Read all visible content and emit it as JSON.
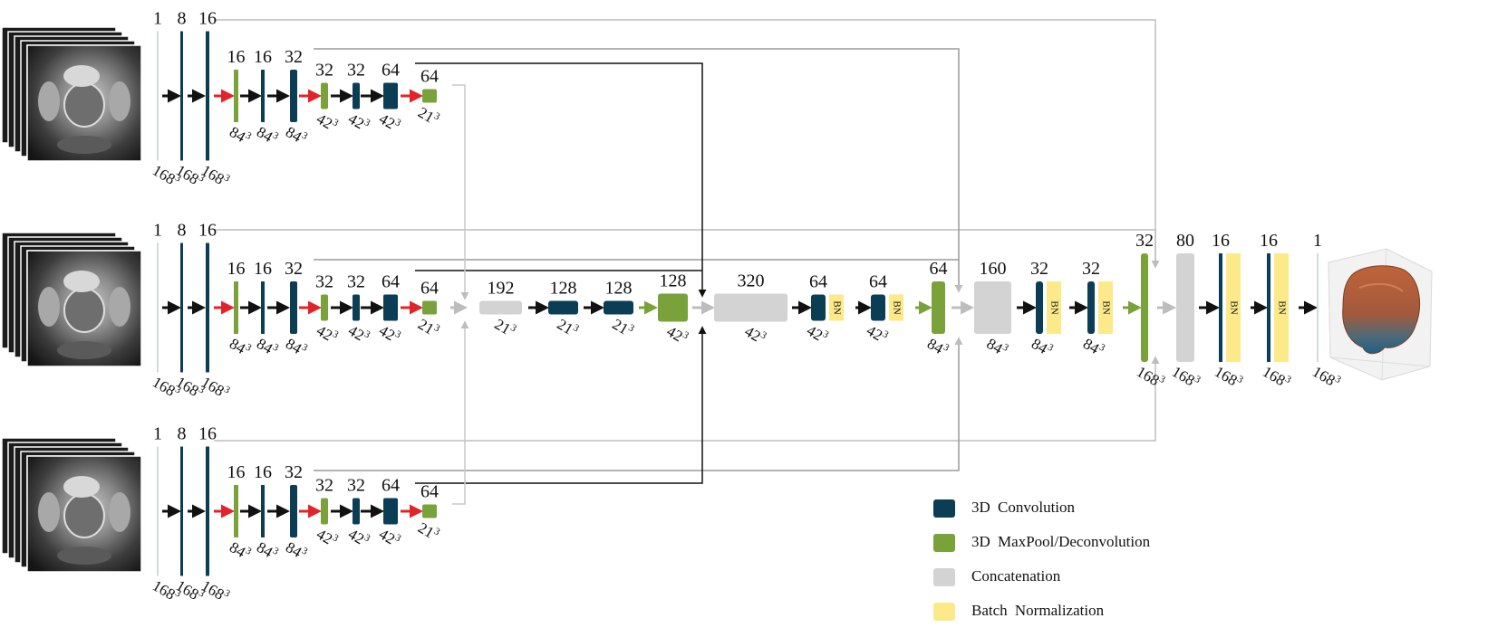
{
  "colors": {
    "convolution": "#0b3d55",
    "pool": "#7aa23b",
    "concat": "#d3d3d3",
    "batchnorm": "#fbe98a",
    "arrow_main": "#111111",
    "arrow_down": "#e2232a",
    "arrow_up": "#7aa23b",
    "skip_dark": "#111111",
    "skip_light": "#bdbdbd"
  },
  "icons": {
    "input_image": "mri-slice-stack-icon",
    "output_image": "3d-prostate-render-icon"
  },
  "encoders": [
    {
      "channels": [
        "1",
        "8",
        "16",
        "16",
        "16",
        "32",
        "32",
        "32",
        "64",
        "64"
      ],
      "sizes": [
        "168",
        "168",
        "168",
        "84",
        "84",
        "84",
        "42",
        "42",
        "42",
        "21"
      ]
    },
    {
      "channels": [
        "1",
        "8",
        "16",
        "16",
        "16",
        "32",
        "32",
        "32",
        "64",
        "64"
      ],
      "sizes": [
        "168",
        "168",
        "168",
        "84",
        "84",
        "84",
        "42",
        "42",
        "42",
        "21"
      ]
    },
    {
      "channels": [
        "1",
        "8",
        "16",
        "16",
        "16",
        "32",
        "32",
        "32",
        "64",
        "64"
      ],
      "sizes": [
        "168",
        "168",
        "168",
        "84",
        "84",
        "84",
        "42",
        "42",
        "42",
        "21"
      ]
    }
  ],
  "decoder": {
    "channels": [
      "192",
      "128",
      "128",
      "128",
      "320",
      "64",
      "64",
      "64",
      "160",
      "32",
      "32",
      "32",
      "80",
      "16",
      "16",
      "1"
    ],
    "sizes": [
      "21",
      "21",
      "21",
      "42",
      "42",
      "42",
      "42",
      "84",
      "84",
      "84",
      "84",
      "168",
      "168",
      "168",
      "168",
      "168"
    ],
    "bn_label": "BN"
  },
  "legend": [
    {
      "label": "3D  Convolution",
      "color_key": "convolution"
    },
    {
      "label": "3D  MaxPool/Deconvolution",
      "color_key": "pool"
    },
    {
      "label": "Concatenation",
      "color_key": "concat"
    },
    {
      "label": "Batch  Normalization",
      "color_key": "batchnorm"
    }
  ]
}
